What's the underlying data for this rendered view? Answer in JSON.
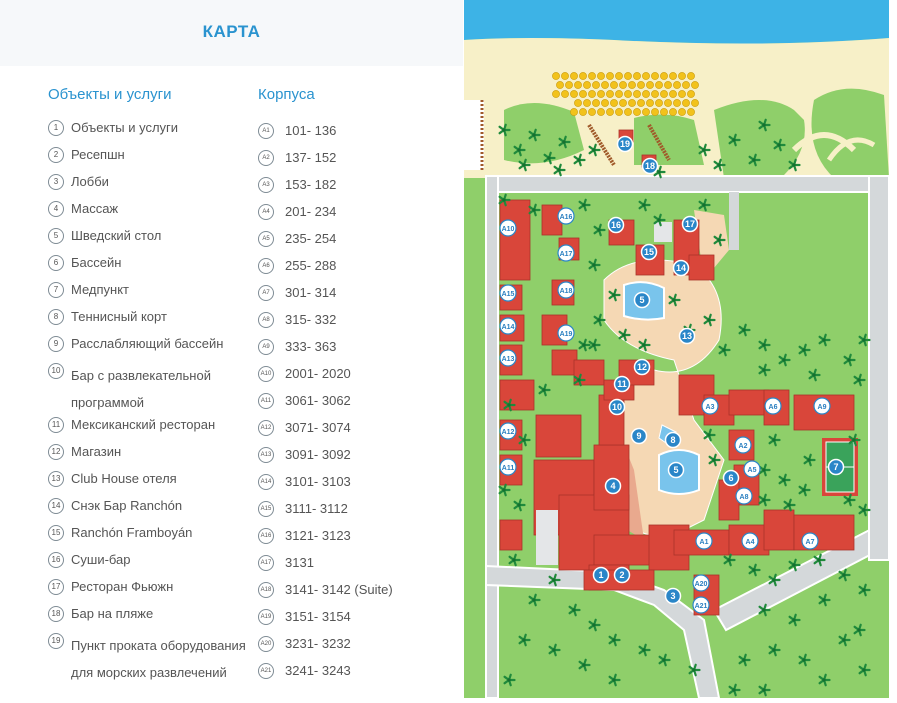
{
  "title": "КАРТА",
  "services_heading": "Объекты и услуги",
  "blocks_heading": "Корпуса",
  "services": [
    {
      "n": "1",
      "label": "Объекты и услуги"
    },
    {
      "n": "2",
      "label": "Ресепшн"
    },
    {
      "n": "3",
      "label": "Лобби"
    },
    {
      "n": "4",
      "label": "Массаж"
    },
    {
      "n": "5",
      "label": "Шведский стол"
    },
    {
      "n": "6",
      "label": "Бассейн"
    },
    {
      "n": "7",
      "label": "Медпункт"
    },
    {
      "n": "8",
      "label": "Теннисный корт"
    },
    {
      "n": "9",
      "label": "Расслабляющий бассейн"
    },
    {
      "n": "10",
      "label": "Бар с развлекательной программой"
    },
    {
      "n": "11",
      "label": "Мексиканский ресторан"
    },
    {
      "n": "12",
      "label": "Магазин"
    },
    {
      "n": "13",
      "label": "Club House отеля"
    },
    {
      "n": "14",
      "label": "Снэк Бар Ranchón"
    },
    {
      "n": "15",
      "label": "Ranchón Framboyán"
    },
    {
      "n": "16",
      "label": "Суши-бар"
    },
    {
      "n": "17",
      "label": "Ресторан Фьюжн"
    },
    {
      "n": "18",
      "label": "Бар на пляже"
    },
    {
      "n": "19",
      "label": "Пункт проката оборудования для морских развлечений"
    }
  ],
  "blocks": [
    {
      "code": "A1",
      "rooms": "101- 136"
    },
    {
      "code": "A2",
      "rooms": "137- 152"
    },
    {
      "code": "A3",
      "rooms": "153- 182"
    },
    {
      "code": "A4",
      "rooms": "201- 234"
    },
    {
      "code": "A5",
      "rooms": "235- 254"
    },
    {
      "code": "A6",
      "rooms": "255- 288"
    },
    {
      "code": "A7",
      "rooms": "301- 314"
    },
    {
      "code": "A8",
      "rooms": "315- 332"
    },
    {
      "code": "A9",
      "rooms": "333- 363"
    },
    {
      "code": "A10",
      "rooms": "2001- 2020"
    },
    {
      "code": "A11",
      "rooms": "3061- 3062"
    },
    {
      "code": "A12",
      "rooms": "3071- 3074"
    },
    {
      "code": "A13",
      "rooms": "3091- 3092"
    },
    {
      "code": "A14",
      "rooms": "3101- 3103"
    },
    {
      "code": "A15",
      "rooms": "3111- 3112"
    },
    {
      "code": "A16",
      "rooms": "3121- 3123"
    },
    {
      "code": "A17",
      "rooms": "3131"
    },
    {
      "code": "A18",
      "rooms": "3141- 3142 (Suite)"
    },
    {
      "code": "A19",
      "rooms": "3151- 3154"
    },
    {
      "code": "A20",
      "rooms": "3231- 3232"
    },
    {
      "code": "A21",
      "rooms": "3241- 3243"
    }
  ],
  "map": {
    "colors": {
      "sea": "#3db3e6",
      "sand": "#f7f0c8",
      "grass": "#8fcf6a",
      "path": "#f5d8b4",
      "road": "#d4d8da",
      "roof": "#d9463a",
      "pool": "#79c4ec",
      "pin": "#2a86c8"
    },
    "service_pins": [
      "1",
      "2",
      "3",
      "4",
      "5",
      "5",
      "6",
      "7",
      "8",
      "9",
      "10",
      "11",
      "12",
      "13",
      "14",
      "15",
      "16",
      "17",
      "18",
      "19"
    ],
    "block_pins": [
      "A1",
      "A2",
      "A3",
      "A4",
      "A5",
      "A6",
      "A7",
      "A8",
      "A9",
      "A10",
      "A11",
      "A12",
      "A13",
      "A14",
      "A15",
      "A16",
      "A17",
      "A18",
      "A19",
      "A20",
      "A21"
    ]
  }
}
